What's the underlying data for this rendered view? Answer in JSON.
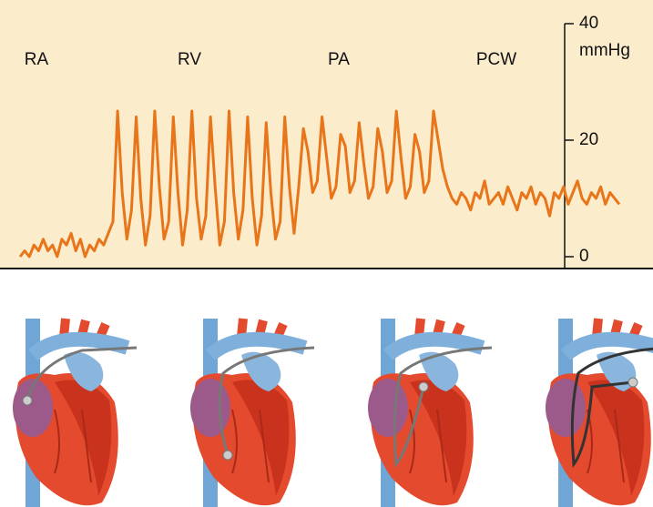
{
  "chart_data": {
    "type": "line",
    "color": "#e8751a",
    "regions": [
      "RA",
      "RV",
      "PA",
      "PCW"
    ],
    "y_unit": "mmHg",
    "ylim": [
      0,
      40
    ],
    "yticks": [
      0,
      20,
      40
    ],
    "values": [
      0,
      1,
      0,
      2,
      1,
      3,
      1,
      2,
      0,
      3,
      2,
      4,
      1,
      3,
      0,
      2,
      1,
      3,
      2,
      4,
      6,
      25,
      11,
      3,
      8,
      24,
      10,
      2,
      7,
      25,
      12,
      3,
      6,
      24,
      11,
      2,
      8,
      25,
      10,
      3,
      7,
      24,
      12,
      2,
      6,
      25,
      11,
      3,
      8,
      24,
      10,
      2,
      7,
      23,
      11,
      3,
      6,
      24,
      12,
      4,
      12,
      22,
      18,
      11,
      13,
      24,
      17,
      10,
      12,
      21,
      19,
      11,
      13,
      23,
      16,
      10,
      12,
      22,
      18,
      11,
      13,
      25,
      17,
      10,
      12,
      21,
      18,
      11,
      13,
      25,
      20,
      15,
      12,
      10,
      9,
      11,
      10,
      8,
      11,
      10,
      13,
      9,
      10,
      11,
      9,
      12,
      10,
      8,
      11,
      10,
      12,
      9,
      11,
      10,
      7,
      11,
      10,
      12,
      9,
      11,
      13,
      10,
      9,
      11,
      10,
      12,
      9,
      11,
      10,
      9
    ]
  }
}
